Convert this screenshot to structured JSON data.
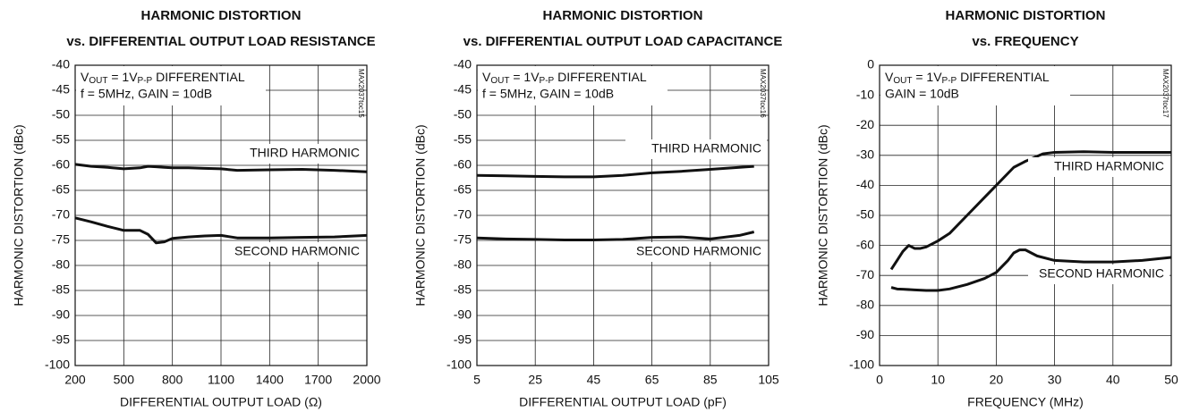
{
  "chart_data": [
    {
      "type": "line",
      "title": "HARMONIC DISTORTION",
      "subtitle": "vs. DIFFERENTIAL OUTPUT LOAD RESISTANCE",
      "xlabel": "DIFFERENTIAL OUTPUT LOAD (Ω)",
      "ylabel": "HARMONIC DISTORTION (dBc)",
      "annotation": {
        "line1": [
          "V",
          "OUT",
          " = 1V",
          "P-P",
          " DIFFERENTIAL"
        ],
        "line2": "f = 5MHz, GAIN = 10dB"
      },
      "tag": "MAX2037toc15",
      "xlim": [
        200,
        2000
      ],
      "xticks": [
        200,
        500,
        800,
        1100,
        1400,
        1700,
        2000
      ],
      "ylim": [
        -100,
        -40
      ],
      "yticks": [
        -40,
        -45,
        -50,
        -55,
        -60,
        -65,
        -70,
        -75,
        -80,
        -85,
        -90,
        -95,
        -100
      ],
      "grid": true,
      "series": [
        {
          "name": "THIRD HARMONIC",
          "color": "#111111",
          "x": [
            200,
            300,
            400,
            500,
            600,
            650,
            700,
            750,
            800,
            900,
            1000,
            1100,
            1200,
            1400,
            1600,
            1800,
            2000
          ],
          "values": [
            -59.8,
            -60.2,
            -60.4,
            -60.7,
            -60.5,
            -60.2,
            -60.3,
            -60.4,
            -60.5,
            -60.5,
            -60.6,
            -60.7,
            -61,
            -60.9,
            -60.8,
            -61,
            -61.3
          ]
        },
        {
          "name": "SECOND HARMONIC",
          "color": "#111111",
          "x": [
            200,
            300,
            400,
            500,
            600,
            650,
            700,
            750,
            800,
            900,
            1000,
            1100,
            1200,
            1400,
            1600,
            1800,
            2000
          ],
          "values": [
            -70.5,
            -71.3,
            -72.2,
            -73,
            -73,
            -73.8,
            -75.5,
            -75.3,
            -74.6,
            -74.3,
            -74.1,
            -74,
            -74.5,
            -74.5,
            -74.4,
            -74.3,
            -74
          ]
        }
      ]
    },
    {
      "type": "line",
      "title": "HARMONIC DISTORTION",
      "subtitle": "vs. DIFFERENTIAL OUTPUT LOAD CAPACITANCE",
      "xlabel": "DIFFERENTIAL OUTPUT LOAD (pF)",
      "ylabel": "HARMONIC DISTORTION (dBc)",
      "annotation": {
        "line1": [
          "V",
          "OUT",
          " = 1V",
          "P-P",
          " DIFFERENTIAL"
        ],
        "line2": "f = 5MHz, GAIN = 10dB"
      },
      "tag": "MAX2037toc16",
      "xlim": [
        5,
        105
      ],
      "xticks": [
        5,
        25,
        45,
        65,
        85,
        105
      ],
      "ylim": [
        -100,
        -40
      ],
      "yticks": [
        -40,
        -45,
        -50,
        -55,
        -60,
        -65,
        -70,
        -75,
        -80,
        -85,
        -90,
        -95,
        -100
      ],
      "grid": true,
      "series": [
        {
          "name": "THIRD HARMONIC",
          "color": "#111111",
          "x": [
            5,
            15,
            25,
            35,
            45,
            55,
            65,
            75,
            85,
            95,
            100
          ],
          "values": [
            -62,
            -62.1,
            -62.2,
            -62.3,
            -62.3,
            -62,
            -61.5,
            -61.2,
            -60.8,
            -60.4,
            -60.2
          ]
        },
        {
          "name": "SECOND HARMONIC",
          "color": "#111111",
          "x": [
            5,
            15,
            25,
            35,
            45,
            55,
            65,
            75,
            85,
            95,
            100
          ],
          "values": [
            -74.5,
            -74.7,
            -74.8,
            -74.9,
            -74.9,
            -74.8,
            -74.4,
            -74.3,
            -74.7,
            -74,
            -73.3
          ]
        }
      ]
    },
    {
      "type": "line",
      "title": "HARMONIC DISTORTION",
      "subtitle": "vs. FREQUENCY",
      "xlabel": "FREQUENCY (MHz)",
      "ylabel": "HARMONIC DISTORTION (dBc)",
      "annotation": {
        "line1": [
          "V",
          "OUT",
          " = 1V",
          "P-P",
          " DIFFERENTIAL"
        ],
        "line2": "GAIN = 10dB"
      },
      "tag": "MAX2037toc17",
      "xlim": [
        0,
        50
      ],
      "xticks": [
        0,
        10,
        20,
        30,
        40,
        50
      ],
      "ylim": [
        -100,
        0
      ],
      "yticks": [
        0,
        -10,
        -20,
        -30,
        -40,
        -50,
        -60,
        -70,
        -80,
        -90,
        -100
      ],
      "grid": true,
      "series": [
        {
          "name": "THIRD HARMONIC",
          "color": "#111111",
          "x": [
            2,
            3,
            4,
            5,
            6,
            7,
            8,
            10,
            12,
            15,
            18,
            20,
            23,
            25,
            28,
            30,
            35,
            40,
            45,
            50
          ],
          "values": [
            -68,
            -65,
            -62,
            -60,
            -61,
            -61,
            -60.5,
            -58.5,
            -56,
            -50,
            -44,
            -40,
            -34,
            -32,
            -29.5,
            -29,
            -28.8,
            -29,
            -29,
            -29
          ]
        },
        {
          "name": "SECOND HARMONIC",
          "color": "#111111",
          "x": [
            2,
            3,
            4,
            6,
            8,
            10,
            12,
            15,
            18,
            20,
            22,
            23,
            24,
            25,
            27,
            30,
            35,
            40,
            45,
            50
          ],
          "values": [
            -74,
            -74.5,
            -74.6,
            -74.8,
            -75,
            -75,
            -74.5,
            -73,
            -71,
            -69,
            -65,
            -62.5,
            -61.5,
            -61.5,
            -63.5,
            -65,
            -65.5,
            -65.5,
            -65,
            -64
          ]
        }
      ]
    }
  ]
}
